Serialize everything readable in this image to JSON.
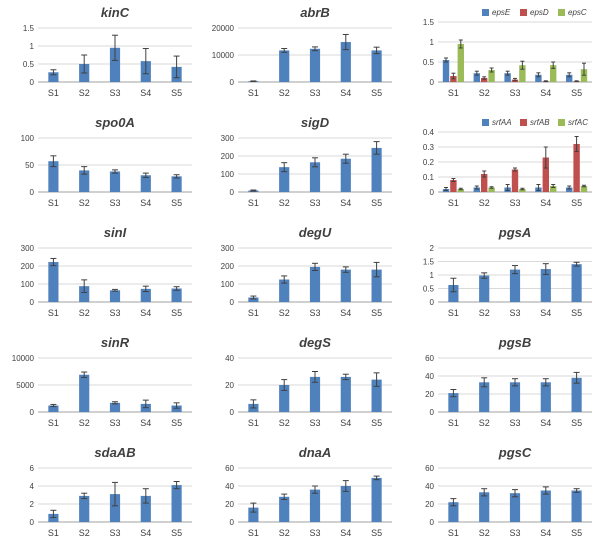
{
  "chart_data": [
    {
      "type": "bar",
      "title": "kinC",
      "categories": [
        "S1",
        "S2",
        "S3",
        "S4",
        "S5"
      ],
      "yticks": [
        "0",
        "0.5",
        "1",
        "1.5"
      ],
      "ylim": [
        0,
        1.5
      ],
      "series": [
        {
          "values": [
            0.27,
            0.5,
            0.95,
            0.58,
            0.42
          ],
          "errors": [
            0.07,
            0.25,
            0.35,
            0.35,
            0.3
          ]
        }
      ]
    },
    {
      "type": "bar",
      "title": "abrB",
      "categories": [
        "S1",
        "S2",
        "S3",
        "S4",
        "S5"
      ],
      "yticks": [
        "0",
        "10000",
        "20000"
      ],
      "ylim": [
        0,
        20000
      ],
      "series": [
        {
          "values": [
            300,
            11700,
            12300,
            14800,
            11700
          ],
          "errors": [
            100,
            700,
            700,
            2800,
            1200
          ]
        }
      ]
    },
    {
      "type": "bar",
      "title": "",
      "categories": [
        "S1",
        "S2",
        "S3",
        "S4",
        "S5"
      ],
      "yticks": [
        "0",
        "0.5",
        "1",
        "1.5"
      ],
      "ylim": [
        0,
        1.5
      ],
      "legend": "top",
      "legend_position": "top",
      "series": [
        {
          "name": "epsE",
          "color": "#4f81bd",
          "values": [
            0.55,
            0.22,
            0.22,
            0.18,
            0.18
          ],
          "errors": [
            0.05,
            0.05,
            0.05,
            0.05,
            0.05
          ]
        },
        {
          "name": "epsD",
          "color": "#c0504d",
          "values": [
            0.15,
            0.1,
            0.06,
            0.02,
            0.02
          ],
          "errors": [
            0.07,
            0.03,
            0.03,
            0.01,
            0.01
          ]
        },
        {
          "name": "epsC",
          "color": "#9bbb59",
          "values": [
            0.95,
            0.3,
            0.42,
            0.42,
            0.32
          ],
          "errors": [
            0.1,
            0.05,
            0.1,
            0.08,
            0.15
          ]
        }
      ]
    },
    {
      "type": "bar",
      "title": "spo0A",
      "categories": [
        "S1",
        "S2",
        "S3",
        "S4",
        "S5"
      ],
      "yticks": [
        "0",
        "50",
        "100"
      ],
      "ylim": [
        0,
        100
      ],
      "series": [
        {
          "values": [
            57,
            40,
            38,
            31,
            29
          ],
          "errors": [
            10,
            7,
            3,
            4,
            3
          ]
        }
      ]
    },
    {
      "type": "bar",
      "title": "sigD",
      "categories": [
        "S1",
        "S2",
        "S3",
        "S4",
        "S5"
      ],
      "yticks": [
        "0",
        "100",
        "200",
        "300"
      ],
      "ylim": [
        0,
        300
      ],
      "series": [
        {
          "values": [
            8,
            138,
            165,
            185,
            245
          ],
          "errors": [
            3,
            25,
            25,
            25,
            35
          ]
        }
      ]
    },
    {
      "type": "bar",
      "title": "",
      "categories": [
        "S1",
        "S2",
        "S3",
        "S4",
        "S5"
      ],
      "yticks": [
        "0",
        "0.1",
        "0.2",
        "0.3",
        "0.4"
      ],
      "ylim": [
        0,
        0.4
      ],
      "legend": "top",
      "legend_position": "top",
      "series": [
        {
          "name": "srfAA",
          "color": "#4f81bd",
          "values": [
            0.02,
            0.03,
            0.03,
            0.03,
            0.03
          ],
          "errors": [
            0.01,
            0.01,
            0.02,
            0.02,
            0.01
          ]
        },
        {
          "name": "srfAB",
          "color": "#c0504d",
          "values": [
            0.08,
            0.12,
            0.15,
            0.23,
            0.32
          ],
          "errors": [
            0.01,
            0.02,
            0.01,
            0.07,
            0.05
          ]
        },
        {
          "name": "srfAC",
          "color": "#9bbb59",
          "values": [
            0.02,
            0.03,
            0.02,
            0.04,
            0.04
          ],
          "errors": [
            0.005,
            0.005,
            0.005,
            0.01,
            0.005
          ]
        }
      ]
    },
    {
      "type": "bar",
      "title": "sinI",
      "categories": [
        "S1",
        "S2",
        "S3",
        "S4",
        "S5"
      ],
      "yticks": [
        "0",
        "100",
        "200",
        "300"
      ],
      "ylim": [
        0,
        300
      ],
      "series": [
        {
          "values": [
            222,
            88,
            65,
            73,
            75
          ],
          "errors": [
            20,
            35,
            5,
            15,
            10
          ]
        }
      ]
    },
    {
      "type": "bar",
      "title": "degU",
      "categories": [
        "S1",
        "S2",
        "S3",
        "S4",
        "S5"
      ],
      "yticks": [
        "0",
        "100",
        "200",
        "300"
      ],
      "ylim": [
        0,
        300
      ],
      "series": [
        {
          "values": [
            25,
            125,
            195,
            180,
            180
          ],
          "errors": [
            8,
            20,
            20,
            15,
            40
          ]
        }
      ]
    },
    {
      "type": "bar",
      "title": "pgsA",
      "categories": [
        "S1",
        "S2",
        "S3",
        "S4",
        "S5"
      ],
      "yticks": [
        "0",
        "0.5",
        "1",
        "1.5",
        "2"
      ],
      "ylim": [
        0,
        2
      ],
      "series": [
        {
          "values": [
            0.63,
            0.98,
            1.2,
            1.22,
            1.4
          ],
          "errors": [
            0.25,
            0.1,
            0.15,
            0.2,
            0.07
          ]
        }
      ]
    },
    {
      "type": "bar",
      "title": "sinR",
      "categories": [
        "S1",
        "S2",
        "S3",
        "S4",
        "S5"
      ],
      "yticks": [
        "0",
        "5000",
        "10000"
      ],
      "ylim": [
        0,
        10000
      ],
      "series": [
        {
          "values": [
            1200,
            6900,
            1700,
            1500,
            1200
          ],
          "errors": [
            200,
            500,
            200,
            700,
            500
          ]
        }
      ]
    },
    {
      "type": "bar",
      "title": "degS",
      "categories": [
        "S1",
        "S2",
        "S3",
        "S4",
        "S5"
      ],
      "yticks": [
        "0",
        "20",
        "40"
      ],
      "ylim": [
        0,
        40
      ],
      "series": [
        {
          "values": [
            6,
            20,
            26,
            26,
            24
          ],
          "errors": [
            3,
            4,
            4,
            2,
            5
          ]
        }
      ]
    },
    {
      "type": "bar",
      "title": "pgsB",
      "categories": [
        "S1",
        "S2",
        "S3",
        "S4",
        "S5"
      ],
      "yticks": [
        "0",
        "20",
        "40",
        "60"
      ],
      "ylim": [
        0,
        60
      ],
      "series": [
        {
          "values": [
            21,
            33,
            33,
            33,
            38
          ],
          "errors": [
            4,
            5,
            4,
            4,
            6
          ]
        }
      ]
    },
    {
      "type": "bar",
      "title": "sdaAB",
      "categories": [
        "S1",
        "S2",
        "S3",
        "S4",
        "S5"
      ],
      "yticks": [
        "0",
        "2",
        "4",
        "6"
      ],
      "ylim": [
        0,
        6
      ],
      "series": [
        {
          "values": [
            0.9,
            2.9,
            3.1,
            2.9,
            4.1
          ],
          "errors": [
            0.4,
            0.3,
            1.3,
            0.8,
            0.4
          ]
        }
      ]
    },
    {
      "type": "bar",
      "title": "dnaA",
      "categories": [
        "S1",
        "S2",
        "S3",
        "S4",
        "S5"
      ],
      "yticks": [
        "0",
        "20",
        "40",
        "60"
      ],
      "ylim": [
        0,
        60
      ],
      "series": [
        {
          "values": [
            16,
            28,
            36,
            40,
            49
          ],
          "errors": [
            5,
            3,
            4,
            6,
            2
          ]
        }
      ]
    },
    {
      "type": "bar",
      "title": "pgsC",
      "categories": [
        "S1",
        "S2",
        "S3",
        "S4",
        "S5"
      ],
      "yticks": [
        "0",
        "20",
        "40",
        "60"
      ],
      "ylim": [
        0,
        60
      ],
      "series": [
        {
          "values": [
            22,
            33,
            32,
            35,
            35
          ],
          "errors": [
            4,
            4,
            4,
            4,
            2
          ]
        }
      ]
    }
  ],
  "colors": {
    "bar": "#4f81bd",
    "error": "#404040",
    "axis": "#a0a0a0",
    "grid": "#d9d9d9",
    "text": "#404040"
  }
}
